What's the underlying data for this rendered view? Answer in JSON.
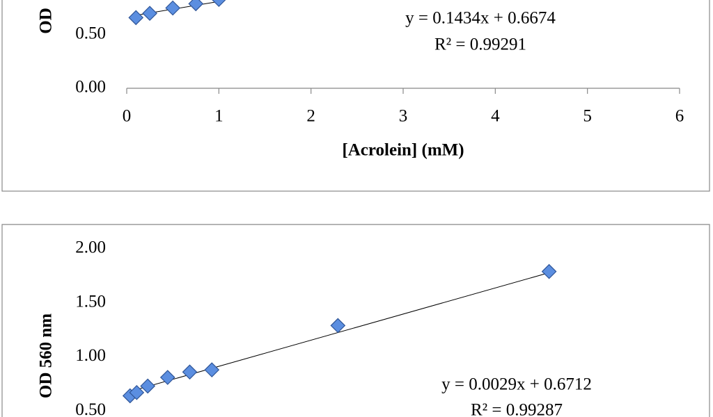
{
  "chart_data": [
    {
      "type": "scatter",
      "y_label": "OD",
      "x_label": "[Acrolein] (mM)",
      "x": [
        0.1,
        0.25,
        0.5,
        0.75,
        1.0
      ],
      "values": [
        0.66,
        0.7,
        0.75,
        0.79,
        0.83
      ],
      "color": "#5b8ee0",
      "xlim": [
        0,
        6
      ],
      "xticks": [
        0,
        1,
        2,
        3,
        4,
        5,
        6
      ],
      "ylim": [
        0,
        2
      ],
      "yticks": [
        {
          "value": 0,
          "label": "0.00"
        },
        {
          "value": 0.5,
          "label": "0.50"
        }
      ],
      "trendline": {
        "slope": 0.1434,
        "intercept": 0.6674,
        "x_range": [
          0.1,
          1.0
        ]
      },
      "equation": "y = 0.1434x + 0.6674",
      "r_squared": "R² = 0.99291"
    },
    {
      "type": "scatter",
      "y_label": "OD 560 nm",
      "x": [
        3,
        9,
        19,
        37,
        57,
        77,
        191,
        382
      ],
      "values": [
        0.64,
        0.67,
        0.73,
        0.81,
        0.86,
        0.88,
        1.29,
        1.79
      ],
      "color": "#5b8ee0",
      "xlim": [
        0,
        500
      ],
      "ylim": [
        0,
        2
      ],
      "yticks": [
        {
          "value": 0.5,
          "label": "0.50"
        },
        {
          "value": 1,
          "label": "1.00"
        },
        {
          "value": 1.5,
          "label": "1.50"
        },
        {
          "value": 2,
          "label": "2.00"
        }
      ],
      "trendline": {
        "slope": 0.0029,
        "intercept": 0.6712,
        "x_range": [
          3,
          382
        ]
      },
      "equation": "y = 0.0029x + 0.6712",
      "r_squared": "R² = 0.99287"
    }
  ]
}
